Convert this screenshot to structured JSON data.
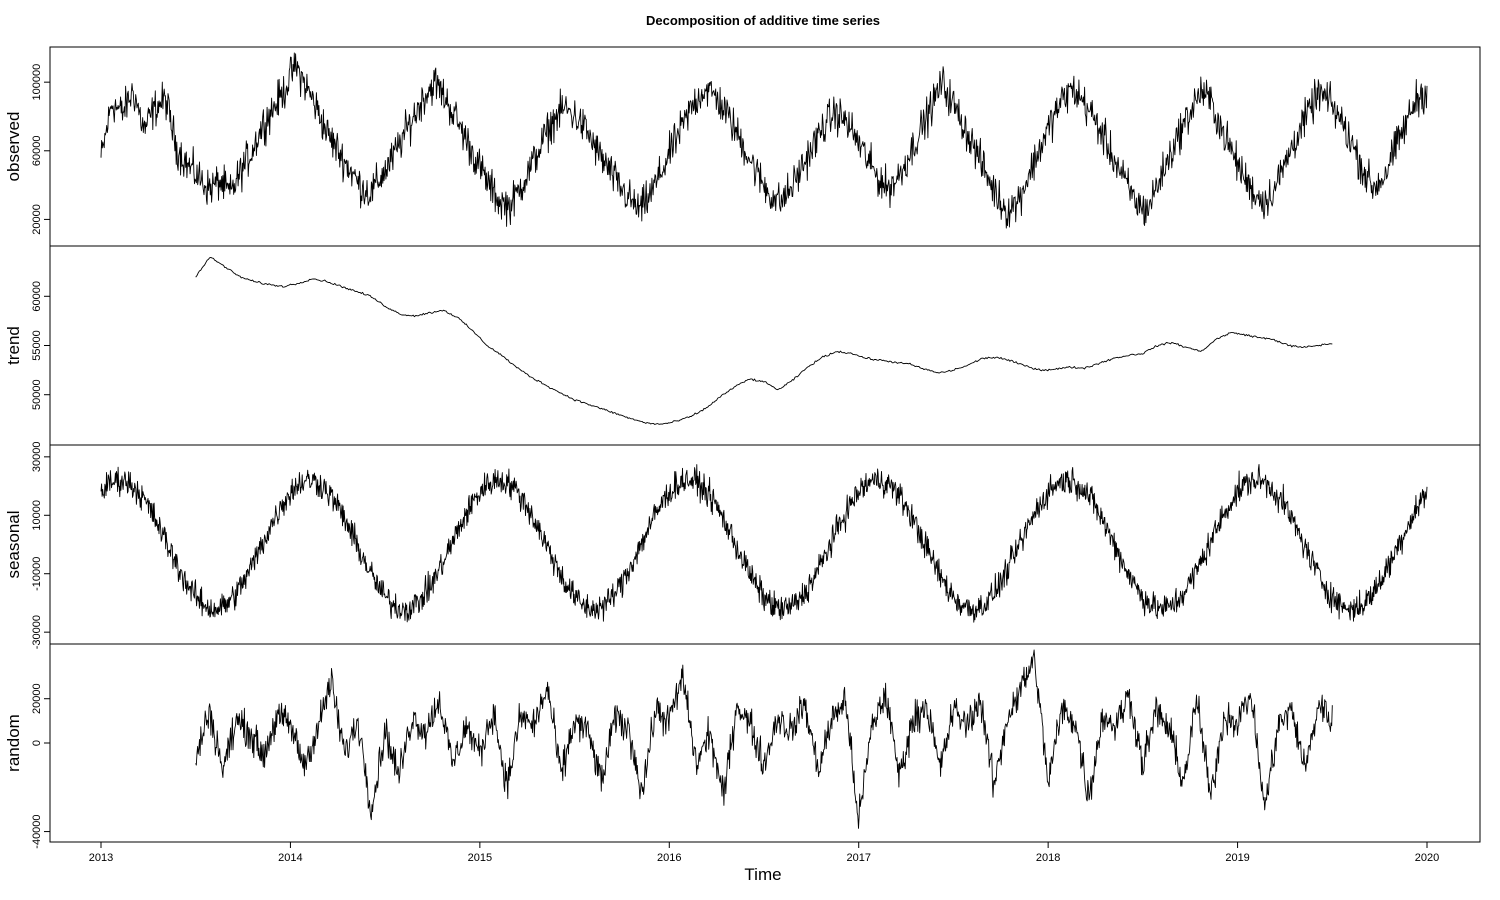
{
  "chart_data": {
    "type": "line",
    "title": "Decomposition of additive time series",
    "xlabel": "Time",
    "xlim": [
      2013,
      2020
    ],
    "x_ticks": [
      "2013",
      "2014",
      "2015",
      "2016",
      "2017",
      "2018",
      "2019",
      "2020"
    ],
    "frequency": "daily",
    "panels": [
      {
        "name": "observed",
        "ylabel": "observed",
        "ylim": [
          8000,
          117000
        ],
        "y_ticks": [
          "20000",
          "60000",
          "100000"
        ],
        "start": 2013.0,
        "end": 2020.0,
        "values": [
          55000,
          88000,
          82000,
          95000,
          72000,
          85000,
          90000,
          62000,
          52000,
          45000,
          38000,
          42000,
          35000,
          48000,
          60000,
          75000,
          85000,
          95000,
          110000,
          98000,
          85000,
          70000,
          60000,
          50000,
          40000,
          35000,
          45000,
          55000,
          68000,
          80000,
          92000,
          100000,
          90000,
          78000,
          65000,
          52000,
          40000,
          30000,
          28000,
          40000,
          52000,
          66000,
          78000,
          85000,
          80000,
          72000,
          60000,
          50000,
          40000,
          32000,
          25000,
          35000,
          48000,
          62000,
          75000,
          88000,
          96000,
          92000,
          82000,
          70000,
          58000,
          45000,
          35000,
          30000,
          38000,
          50000,
          62000,
          74000,
          82000,
          78000,
          68000,
          56000,
          45000,
          38000,
          45000,
          58000,
          72000,
          85000,
          100000,
          88000,
          75000,
          62000,
          48000,
          35000,
          25000,
          30000,
          45000,
          60000,
          75000,
          88000,
          96000,
          90000,
          80000,
          68000,
          55000,
          42000,
          30000,
          25000,
          40000,
          55000,
          70000,
          82000,
          95000,
          88000,
          72000,
          58000,
          45000,
          35000,
          30000,
          40000,
          55000,
          70000,
          82000,
          94000,
          88000,
          78000,
          65000,
          50000,
          38000,
          45000,
          60000,
          75000,
          90000,
          95000
        ]
      },
      {
        "name": "trend",
        "ylabel": "trend",
        "ylim": [
          45500,
          64500
        ],
        "y_ticks": [
          "50000",
          "55000",
          "60000"
        ],
        "start": 2013.5,
        "end": 2019.5,
        "values": [
          62000,
          64000,
          63000,
          62000,
          61500,
          61200,
          61000,
          61300,
          61800,
          61500,
          61000,
          60500,
          60000,
          59000,
          58200,
          58000,
          58300,
          58600,
          57800,
          56500,
          55000,
          54000,
          52800,
          51800,
          51000,
          50200,
          49500,
          49000,
          48500,
          48000,
          47500,
          47100,
          47000,
          47300,
          47800,
          48600,
          49800,
          50800,
          51600,
          51300,
          50500,
          51500,
          52800,
          53800,
          54400,
          54200,
          53700,
          53500,
          53300,
          53100,
          52600,
          52200,
          52500,
          53000,
          53700,
          53800,
          53400,
          52900,
          52500,
          52600,
          52800,
          52700,
          53200,
          53700,
          54000,
          54200,
          55000,
          55300,
          54800,
          54400,
          55600,
          56300,
          56100,
          55800,
          55600,
          55000,
          54800,
          55000,
          55200
        ]
      },
      {
        "name": "seasonal",
        "ylabel": "seasonal",
        "ylim": [
          -32000,
          32000
        ],
        "y_ticks": [
          "-30000",
          "-10000",
          "10000",
          "30000"
        ],
        "start": 2013.0,
        "end": 2020.0,
        "period": 1,
        "amplitude": 22000
      },
      {
        "name": "random",
        "ylabel": "random",
        "ylim": [
          -42000,
          42000
        ],
        "y_ticks": [
          "-40000",
          "0",
          "20000"
        ],
        "start": 2013.5,
        "end": 2019.5,
        "values": [
          -8000,
          15000,
          -12000,
          10000,
          5000,
          -6000,
          12000,
          8000,
          -10000,
          6000,
          28000,
          -5000,
          10000,
          -30000,
          6000,
          -15000,
          12000,
          5000,
          20000,
          -10000,
          8000,
          -5000,
          15000,
          -20000,
          12000,
          8000,
          25000,
          -15000,
          10000,
          5000,
          -18000,
          12000,
          6000,
          -22000,
          15000,
          10000,
          30000,
          -10000,
          5000,
          -25000,
          18000,
          8000,
          -10000,
          12000,
          5000,
          18000,
          -12000,
          10000,
          20000,
          -35000,
          8000,
          22000,
          -15000,
          10000,
          18000,
          -12000,
          15000,
          8000,
          20000,
          -20000,
          12000,
          25000,
          38000,
          -18000,
          15000,
          10000,
          -25000,
          12000,
          8000,
          22000,
          -10000,
          15000,
          5000,
          -18000,
          20000,
          -25000,
          12000,
          10000,
          22000,
          -30000,
          8000,
          15000,
          -12000,
          18000,
          10000
        ]
      }
    ]
  }
}
